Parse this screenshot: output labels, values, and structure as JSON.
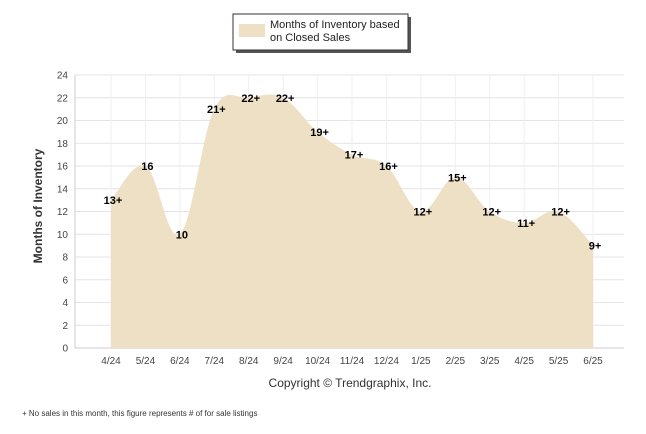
{
  "chart_data": {
    "type": "area",
    "title": "",
    "ylabel": "Months of Inventory",
    "xlabel": "",
    "ylim": [
      0,
      24
    ],
    "yticks": [
      0,
      2,
      4,
      6,
      8,
      10,
      12,
      14,
      16,
      18,
      20,
      22,
      24
    ],
    "grid": true,
    "legend_position": "top-center",
    "categories": [
      "4/24",
      "5/24",
      "6/24",
      "7/24",
      "8/24",
      "9/24",
      "10/24",
      "11/24",
      "12/24",
      "1/25",
      "2/25",
      "3/25",
      "4/25",
      "5/25",
      "6/25"
    ],
    "series": [
      {
        "name": "Months of Inventory based on Closed Sales",
        "legend_lines": [
          "Months of Inventory based",
          "on Closed Sales"
        ],
        "color": "#ede0c5",
        "values": [
          13,
          16,
          10,
          21,
          22,
          22,
          19,
          17,
          16,
          12,
          15,
          12,
          11,
          12,
          9
        ],
        "labels": [
          "13+",
          "16",
          "10",
          "21+",
          "22+",
          "22+",
          "19+",
          "17+",
          "16+",
          "12+",
          "15+",
          "12+",
          "11+",
          "12+",
          "9+"
        ]
      }
    ]
  },
  "copyright": "Copyright © Trendgraphix, Inc.",
  "footnote": "+ No sales in this month, this figure represents # of for sale listings"
}
